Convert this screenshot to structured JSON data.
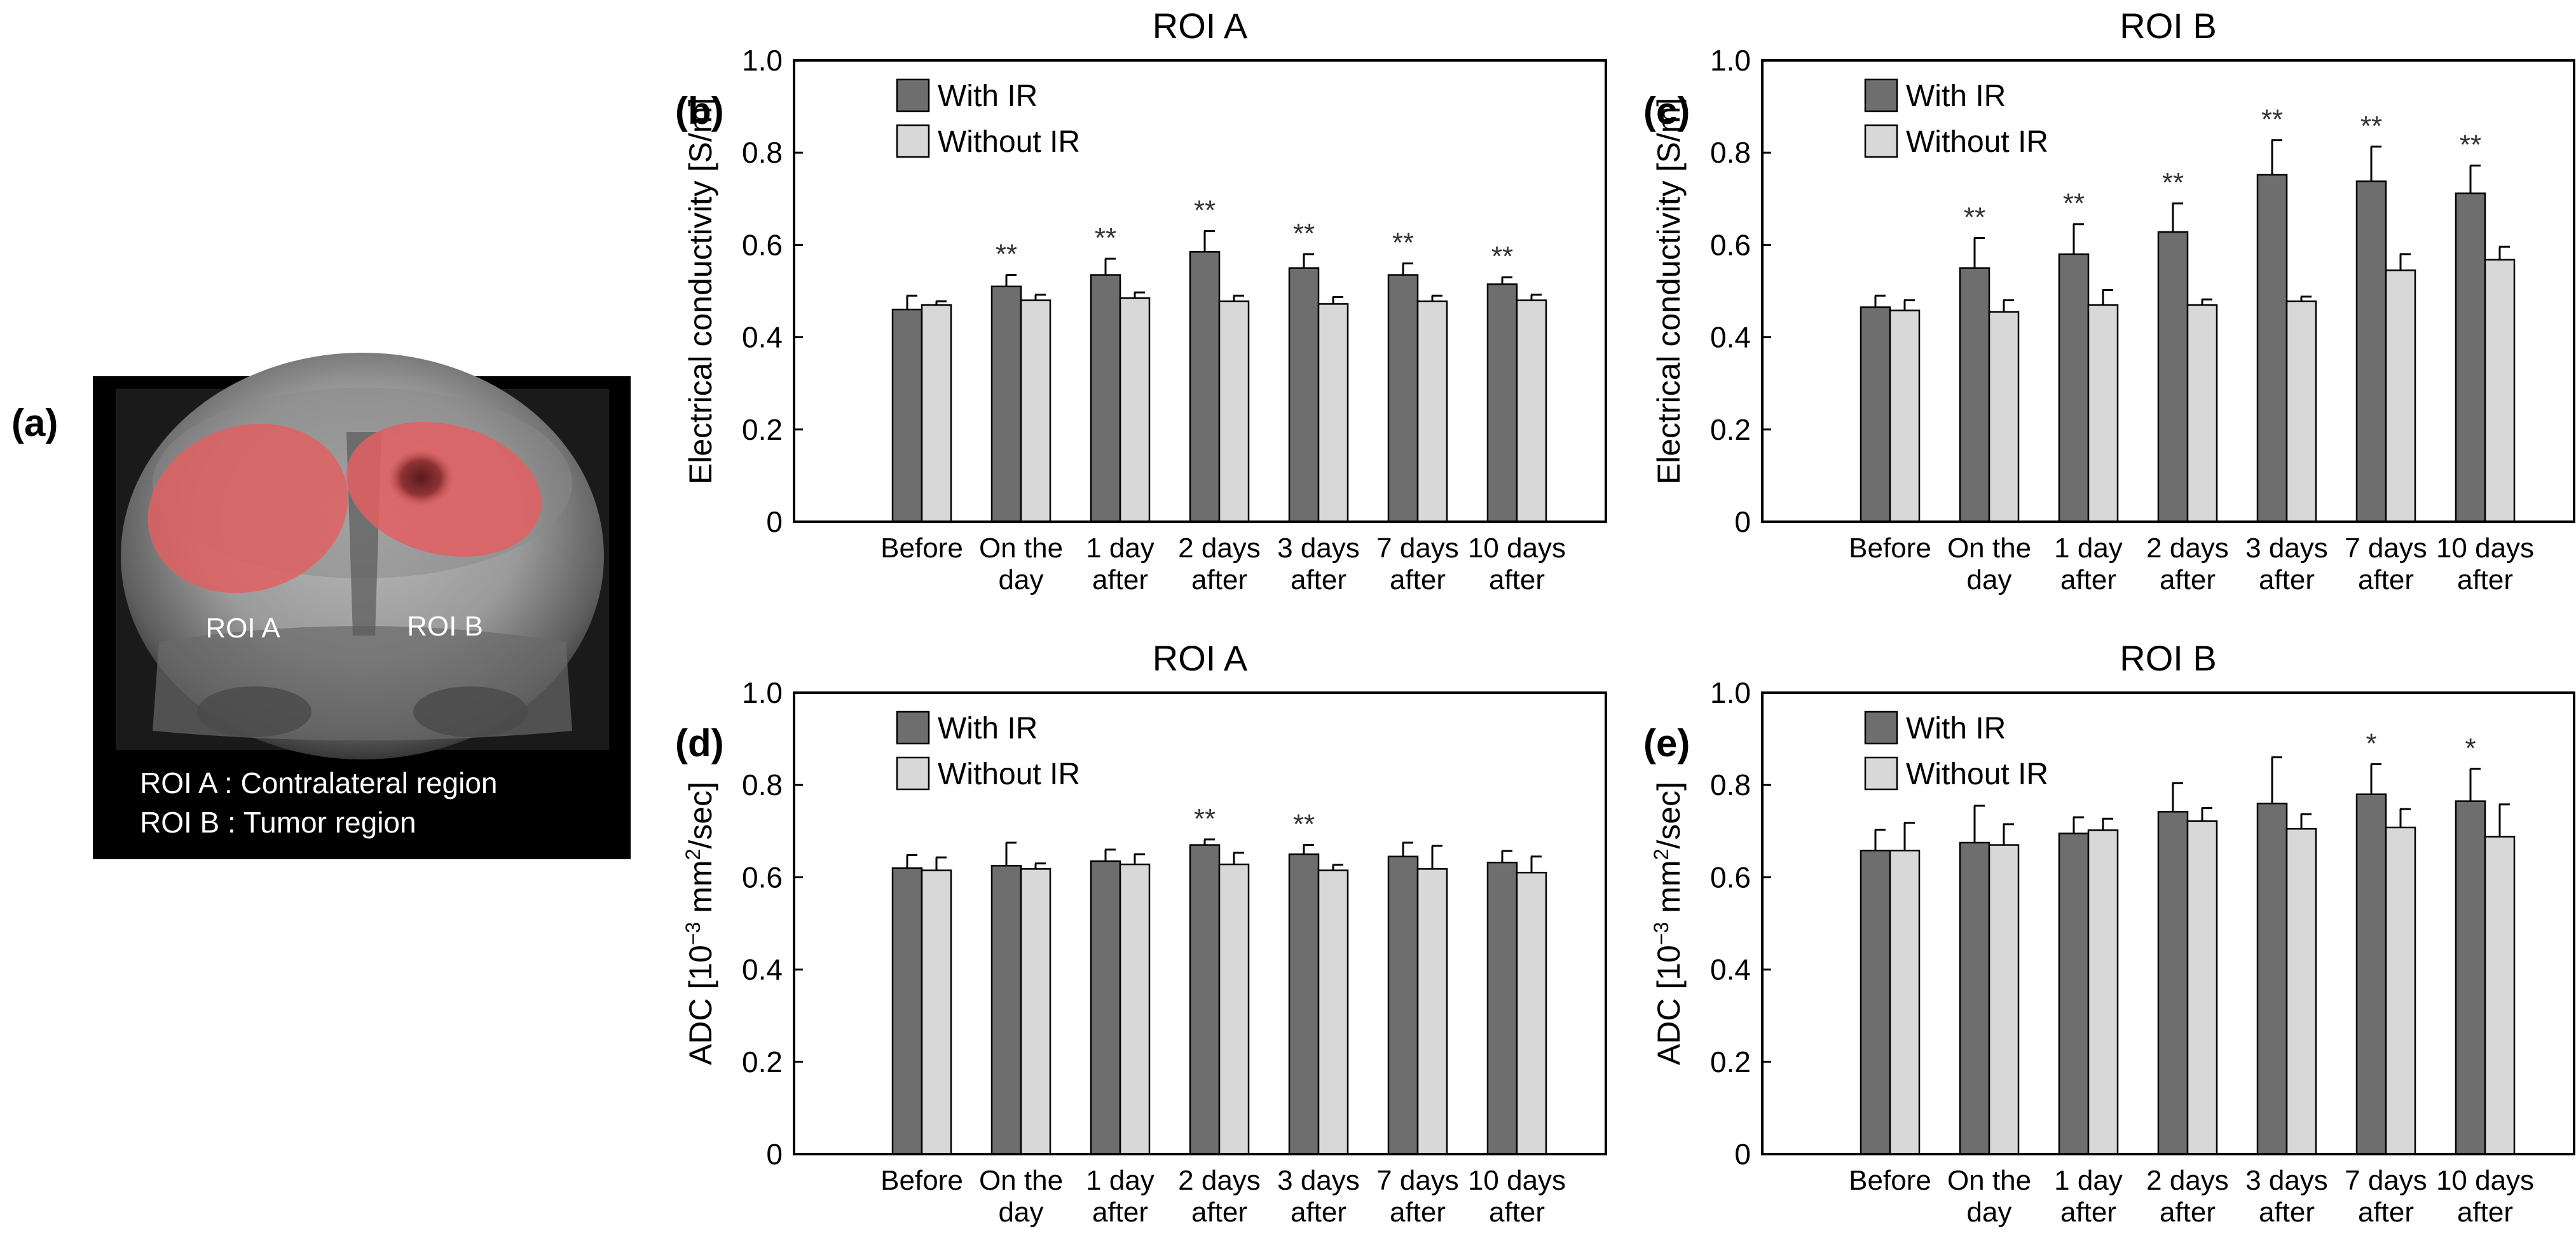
{
  "figure": {
    "panel_a": {
      "label": "(a)",
      "roi_a_label": "ROI A",
      "roi_b_label": "ROI B",
      "legend_line1": "ROI A : Contralateral region",
      "legend_line2": "ROI B : Tumor region",
      "colors": {
        "roi_fill": "#e35f60",
        "background": "#000000"
      }
    }
  },
  "chart_data": [
    {
      "id": "b",
      "label": "(b)",
      "type": "bar",
      "title": "ROI A",
      "xlabel": "",
      "ylabel": "Electrical conductivity [S/m]",
      "ylim": [
        0,
        1.0
      ],
      "yticks": [
        "0",
        "0.2",
        "0.4",
        "0.6",
        "0.8",
        "1.0"
      ],
      "categories": [
        [
          "Before"
        ],
        [
          "On the",
          "day"
        ],
        [
          "1 day",
          "after"
        ],
        [
          "2 days",
          "after"
        ],
        [
          "3 days",
          "after"
        ],
        [
          "7 days",
          "after"
        ],
        [
          "10 days",
          "after"
        ]
      ],
      "series": [
        {
          "name": "With IR",
          "color": "#6e6e6e",
          "values": [
            0.46,
            0.51,
            0.535,
            0.585,
            0.55,
            0.535,
            0.515
          ],
          "errors": [
            0.03,
            0.025,
            0.035,
            0.045,
            0.03,
            0.025,
            0.015
          ]
        },
        {
          "name": "Without IR",
          "color": "#d8d8d8",
          "values": [
            0.47,
            0.48,
            0.485,
            0.478,
            0.472,
            0.478,
            0.48
          ],
          "errors": [
            0.008,
            0.012,
            0.012,
            0.012,
            0.015,
            0.012,
            0.012
          ]
        }
      ],
      "annotations": [
        "",
        "**",
        "**",
        "**",
        "**",
        "**",
        "**"
      ]
    },
    {
      "id": "c",
      "label": "(c)",
      "type": "bar",
      "title": "ROI B",
      "xlabel": "",
      "ylabel": "Electrical conductivity [S/m]",
      "ylim": [
        0,
        1.0
      ],
      "yticks": [
        "0",
        "0.2",
        "0.4",
        "0.6",
        "0.8",
        "1.0"
      ],
      "categories": [
        [
          "Before"
        ],
        [
          "On the",
          "day"
        ],
        [
          "1 day",
          "after"
        ],
        [
          "2 days",
          "after"
        ],
        [
          "3 days",
          "after"
        ],
        [
          "7 days",
          "after"
        ],
        [
          "10 days",
          "after"
        ]
      ],
      "series": [
        {
          "name": "With IR",
          "color": "#6e6e6e",
          "values": [
            0.465,
            0.55,
            0.58,
            0.628,
            0.752,
            0.738,
            0.712
          ],
          "errors": [
            0.025,
            0.065,
            0.065,
            0.062,
            0.075,
            0.075,
            0.06
          ]
        },
        {
          "name": "Without IR",
          "color": "#d8d8d8",
          "values": [
            0.458,
            0.455,
            0.47,
            0.47,
            0.478,
            0.545,
            0.568
          ],
          "errors": [
            0.022,
            0.025,
            0.032,
            0.012,
            0.01,
            0.035,
            0.028
          ]
        }
      ],
      "annotations": [
        "",
        "**",
        "**",
        "**",
        "**",
        "**",
        "**"
      ]
    },
    {
      "id": "d",
      "label": "(d)",
      "type": "bar",
      "title": "ROI A",
      "xlabel": "",
      "ylabel": "ADC [10",
      "ylabel_exp1": "−3",
      "ylabel_mid": " mm",
      "ylabel_exp2": "2",
      "ylabel_end": "/sec]",
      "ylim": [
        0,
        1.0
      ],
      "yticks": [
        "0",
        "0.2",
        "0.4",
        "0.6",
        "0.8",
        "1.0"
      ],
      "categories": [
        [
          "Before"
        ],
        [
          "On the",
          "day"
        ],
        [
          "1 day",
          "after"
        ],
        [
          "2 days",
          "after"
        ],
        [
          "3 days",
          "after"
        ],
        [
          "7 days",
          "after"
        ],
        [
          "10 days",
          "after"
        ]
      ],
      "series": [
        {
          "name": "With IR",
          "color": "#6e6e6e",
          "values": [
            0.62,
            0.625,
            0.635,
            0.67,
            0.65,
            0.645,
            0.632
          ],
          "errors": [
            0.028,
            0.05,
            0.025,
            0.012,
            0.02,
            0.03,
            0.025
          ]
        },
        {
          "name": "Without IR",
          "color": "#d8d8d8",
          "values": [
            0.615,
            0.618,
            0.628,
            0.628,
            0.615,
            0.618,
            0.61
          ],
          "errors": [
            0.028,
            0.012,
            0.022,
            0.025,
            0.012,
            0.05,
            0.035
          ]
        }
      ],
      "annotations": [
        "",
        "",
        "",
        "**",
        "**",
        "",
        ""
      ]
    },
    {
      "id": "e",
      "label": "(e)",
      "type": "bar",
      "title": "ROI B",
      "xlabel": "",
      "ylabel": "ADC [10",
      "ylabel_exp1": "−3",
      "ylabel_mid": " mm",
      "ylabel_exp2": "2",
      "ylabel_end": "/sec]",
      "ylim": [
        0,
        1.0
      ],
      "yticks": [
        "0",
        "0.2",
        "0.4",
        "0.6",
        "0.8",
        "1.0"
      ],
      "categories": [
        [
          "Before"
        ],
        [
          "On the",
          "day"
        ],
        [
          "1 day",
          "after"
        ],
        [
          "2 days",
          "after"
        ],
        [
          "3 days",
          "after"
        ],
        [
          "7 days",
          "after"
        ],
        [
          "10 days",
          "after"
        ]
      ],
      "series": [
        {
          "name": "With IR",
          "color": "#6e6e6e",
          "values": [
            0.658,
            0.675,
            0.695,
            0.742,
            0.76,
            0.78,
            0.765
          ],
          "errors": [
            0.045,
            0.08,
            0.035,
            0.062,
            0.1,
            0.065,
            0.07
          ]
        },
        {
          "name": "Without IR",
          "color": "#d8d8d8",
          "values": [
            0.658,
            0.67,
            0.702,
            0.722,
            0.705,
            0.708,
            0.688
          ],
          "errors": [
            0.06,
            0.045,
            0.025,
            0.028,
            0.032,
            0.04,
            0.07
          ]
        }
      ],
      "annotations": [
        "",
        "",
        "",
        "",
        "",
        "*",
        "*"
      ]
    }
  ]
}
